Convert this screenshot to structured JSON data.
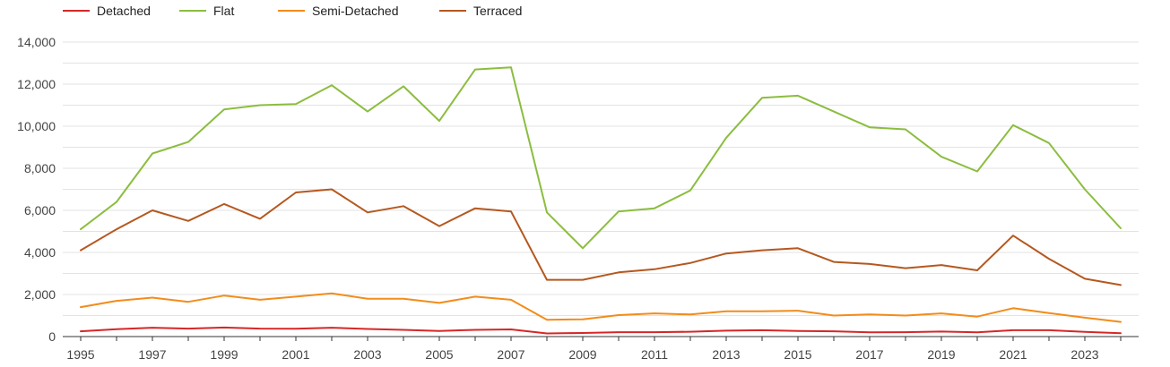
{
  "chart_data": {
    "type": "line",
    "title": "",
    "xlabel": "",
    "ylabel": "",
    "ylim": [
      0,
      14000
    ],
    "y_ticks": [
      0,
      2000,
      4000,
      6000,
      8000,
      10000,
      12000,
      14000
    ],
    "y_tick_labels": [
      "0",
      "2,000",
      "4,000",
      "6,000",
      "8,000",
      "10,000",
      "12,000",
      "14,000"
    ],
    "x": [
      1995,
      1996,
      1997,
      1998,
      1999,
      2000,
      2001,
      2002,
      2003,
      2004,
      2005,
      2006,
      2007,
      2008,
      2009,
      2010,
      2011,
      2012,
      2013,
      2014,
      2015,
      2016,
      2017,
      2018,
      2019,
      2020,
      2021,
      2022,
      2023,
      2024
    ],
    "x_tick_labels": [
      "1995",
      "1997",
      "1999",
      "2001",
      "2003",
      "2005",
      "2007",
      "2009",
      "2011",
      "2013",
      "2015",
      "2017",
      "2019",
      "2021",
      "2023"
    ],
    "grid": true,
    "legend_position": "top-left",
    "series": [
      {
        "name": "Detached",
        "color": "#d62728",
        "values": [
          250,
          350,
          420,
          380,
          430,
          380,
          370,
          420,
          360,
          320,
          270,
          320,
          340,
          150,
          170,
          210,
          210,
          230,
          280,
          300,
          270,
          250,
          200,
          210,
          240,
          200,
          300,
          300,
          220,
          160
        ]
      },
      {
        "name": "Flat",
        "color": "#8bbd3f",
        "values": [
          5100,
          6400,
          8700,
          9250,
          10800,
          11000,
          11050,
          11950,
          10700,
          11900,
          10250,
          12700,
          12800,
          5900,
          4200,
          5950,
          6100,
          6950,
          9450,
          11350,
          11450,
          10700,
          9950,
          9850,
          8550,
          7850,
          10050,
          9200,
          7000,
          5150
        ]
      },
      {
        "name": "Semi-Detached",
        "color": "#f28c1c",
        "values": [
          1400,
          1700,
          1850,
          1650,
          1950,
          1750,
          1900,
          2050,
          1800,
          1800,
          1600,
          1900,
          1750,
          800,
          820,
          1020,
          1100,
          1050,
          1200,
          1200,
          1230,
          1000,
          1050,
          1000,
          1100,
          950,
          1350,
          1120,
          900,
          700
        ]
      },
      {
        "name": "Terraced",
        "color": "#b5581f",
        "values": [
          4100,
          5100,
          6000,
          5500,
          6300,
          5600,
          6850,
          7000,
          5900,
          6200,
          5250,
          6100,
          5950,
          2700,
          2700,
          3050,
          3200,
          3500,
          3950,
          4100,
          4200,
          3550,
          3450,
          3250,
          3400,
          3150,
          4800,
          3700,
          2750,
          2450
        ]
      }
    ]
  }
}
